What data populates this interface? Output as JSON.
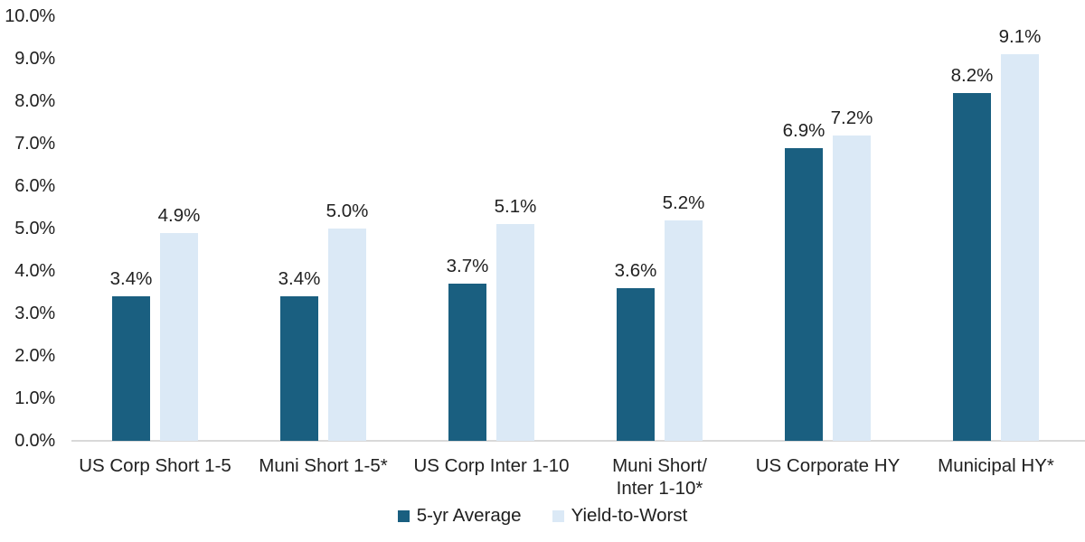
{
  "chart_data": {
    "type": "bar",
    "title": "",
    "categories": [
      "US Corp Short 1-5",
      "Muni Short 1-5*",
      "US Corp Inter 1-10",
      "Muni Short/\nInter 1-10*",
      "US Corporate HY",
      "Municipal HY*"
    ],
    "series": [
      {
        "name": "5-yr Average",
        "color": "#1a5f80",
        "values": [
          3.4,
          3.4,
          3.7,
          3.6,
          6.9,
          8.2
        ],
        "value_labels": [
          "3.4%",
          "3.4%",
          "3.7%",
          "3.6%",
          "6.9%",
          "8.2%"
        ]
      },
      {
        "name": "Yield-to-Worst",
        "color": "#dbe9f6",
        "values": [
          4.9,
          5.0,
          5.1,
          5.2,
          7.2,
          9.1
        ],
        "value_labels": [
          "4.9%",
          "5.0%",
          "5.1%",
          "5.2%",
          "7.2%",
          "9.1%"
        ]
      }
    ],
    "xlabel": "",
    "ylabel": "",
    "ylim": [
      0,
      10
    ],
    "y_axis": {
      "min": 0,
      "max": 10,
      "step": 1,
      "ticks": [
        "0.0%",
        "1.0%",
        "2.0%",
        "3.0%",
        "4.0%",
        "5.0%",
        "6.0%",
        "7.0%",
        "8.0%",
        "9.0%",
        "10.0%"
      ]
    },
    "grid": false,
    "legend_position": "bottom-center",
    "colors": {
      "axis_line": "#d9d9d9",
      "text": "#212121",
      "background": "#ffffff"
    }
  }
}
